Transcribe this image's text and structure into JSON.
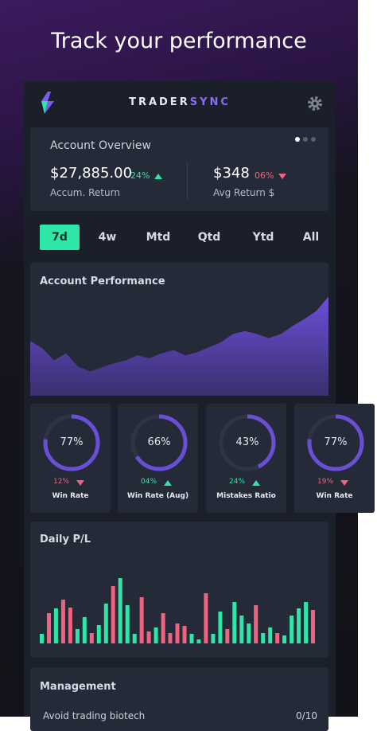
{
  "header": {
    "title": "Track your performance"
  },
  "app_bar": {
    "brand_left": "TRADER",
    "brand_right": "SYNC"
  },
  "overview": {
    "title": "Account Overview",
    "items": [
      {
        "amount": "$27,885.00",
        "change": "24%",
        "direction": "up",
        "caption": "Accum. Return"
      },
      {
        "amount": "$348",
        "change": "06%",
        "direction": "down",
        "caption": "Avg Return $"
      }
    ]
  },
  "tabs": {
    "items": [
      "7d",
      "4w",
      "Mtd",
      "Qtd",
      "Ytd",
      "All"
    ],
    "selected": 0
  },
  "performance": {
    "title": "Account Performance",
    "values": [
      54,
      47,
      35,
      42,
      29,
      24,
      28,
      32,
      35,
      40,
      37,
      42,
      45,
      40,
      43,
      48,
      53,
      61,
      64,
      61,
      57,
      61,
      69,
      76,
      84,
      98
    ]
  },
  "gauges": [
    {
      "percent": 77,
      "label": "77%",
      "change": "12%",
      "direction": "down",
      "caption": "Win Rate"
    },
    {
      "percent": 66,
      "label": "66%",
      "change": "04%",
      "direction": "up",
      "caption": "Win Rate (Aug)"
    },
    {
      "percent": 43,
      "label": "43%",
      "change": "24%",
      "direction": "up",
      "caption": "Mistakes Ratio"
    },
    {
      "percent": 77,
      "label": "77%",
      "change": "19%",
      "direction": "down",
      "caption": "Win Rate"
    }
  ],
  "daily_pl": {
    "title": "Daily P/L",
    "bars": [
      {
        "value": 12,
        "color": "#2ee6a6"
      },
      {
        "value": 38,
        "color": "#f0637f"
      },
      {
        "value": 44,
        "color": "#2ee6a6"
      },
      {
        "value": 55,
        "color": "#f0637f"
      },
      {
        "value": 45,
        "color": "#f0637f"
      },
      {
        "value": 18,
        "color": "#2ee6a6"
      },
      {
        "value": 33,
        "color": "#2ee6a6"
      },
      {
        "value": 13,
        "color": "#f0637f"
      },
      {
        "value": 23,
        "color": "#2ee6a6"
      },
      {
        "value": 50,
        "color": "#2ee6a6"
      },
      {
        "value": 72,
        "color": "#f0637f"
      },
      {
        "value": 82,
        "color": "#2ee6a6"
      },
      {
        "value": 48,
        "color": "#2ee6a6"
      },
      {
        "value": 12,
        "color": "#2ee6a6"
      },
      {
        "value": 58,
        "color": "#f0637f"
      },
      {
        "value": 15,
        "color": "#f0637f"
      },
      {
        "value": 20,
        "color": "#2ee6a6"
      },
      {
        "value": 38,
        "color": "#f0637f"
      },
      {
        "value": 13,
        "color": "#f0637f"
      },
      {
        "value": 25,
        "color": "#f0637f"
      },
      {
        "value": 22,
        "color": "#f0637f"
      },
      {
        "value": 12,
        "color": "#2ee6a6"
      },
      {
        "value": 5,
        "color": "#2ee6a6"
      },
      {
        "value": 63,
        "color": "#f0637f"
      },
      {
        "value": 12,
        "color": "#2ee6a6"
      },
      {
        "value": 40,
        "color": "#2ee6a6"
      },
      {
        "value": 18,
        "color": "#f0637f"
      },
      {
        "value": 52,
        "color": "#2ee6a6"
      },
      {
        "value": 35,
        "color": "#2ee6a6"
      },
      {
        "value": 25,
        "color": "#2ee6a6"
      },
      {
        "value": 48,
        "color": "#f0637f"
      },
      {
        "value": 13,
        "color": "#2ee6a6"
      },
      {
        "value": 20,
        "color": "#2ee6a6"
      },
      {
        "value": 13,
        "color": "#f0637f"
      },
      {
        "value": 10,
        "color": "#2ee6a6"
      },
      {
        "value": 35,
        "color": "#2ee6a6"
      },
      {
        "value": 44,
        "color": "#2ee6a6"
      },
      {
        "value": 52,
        "color": "#2ee6a6"
      },
      {
        "value": 42,
        "color": "#f0637f"
      }
    ]
  },
  "management": {
    "title": "Management",
    "rows": [
      {
        "label": "Avoid trading biotech",
        "value": "0/10"
      }
    ]
  }
}
